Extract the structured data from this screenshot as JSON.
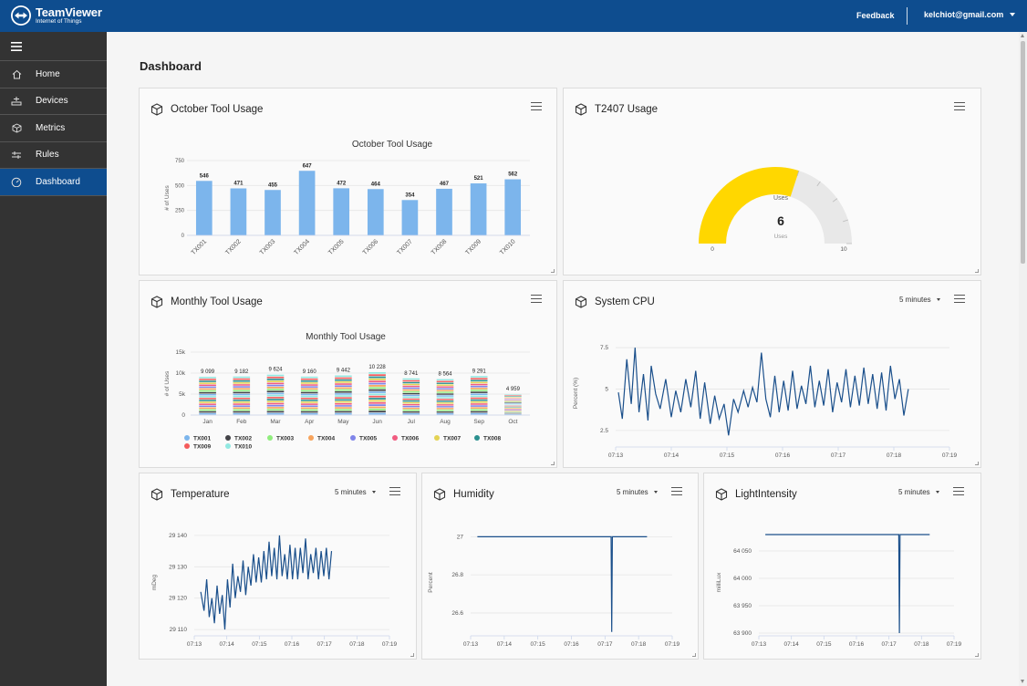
{
  "app": {
    "brand_name": "TeamViewer",
    "brand_sub": "Internet of Things",
    "feedback": "Feedback",
    "user_email": "kelchiot@gmail.com"
  },
  "sidebar": {
    "items": [
      {
        "label": "Home",
        "icon": "home-icon"
      },
      {
        "label": "Devices",
        "icon": "devices-icon"
      },
      {
        "label": "Metrics",
        "icon": "cube-icon"
      },
      {
        "label": "Rules",
        "icon": "rules-icon"
      },
      {
        "label": "Dashboard",
        "icon": "dashboard-icon",
        "active": true
      }
    ]
  },
  "page": {
    "title": "Dashboard"
  },
  "colors": {
    "accent": "#0e4d8f",
    "bar": "#7cb5ec",
    "gauge": "#ffd700",
    "line": "#1a4f8b"
  },
  "widgets": {
    "october": {
      "title": "October Tool Usage"
    },
    "t2407": {
      "title": "T2407 Usage"
    },
    "monthly": {
      "title": "Monthly Tool Usage"
    },
    "cpu": {
      "title": "System CPU",
      "range": "5 minutes"
    },
    "temperature": {
      "title": "Temperature",
      "range": "5 minutes"
    },
    "humidity": {
      "title": "Humidity",
      "range": "5 minutes"
    },
    "light": {
      "title": "LightIntensity",
      "range": "5 minutes"
    }
  },
  "chart_data": [
    {
      "id": "october",
      "type": "bar",
      "title": "October Tool Usage",
      "ylabel": "# of Uses",
      "ylim": [
        0,
        750
      ],
      "yticks": [
        "0",
        "250",
        "500",
        "750"
      ],
      "categories": [
        "TX001",
        "TX002",
        "TX003",
        "TX004",
        "TX005",
        "TX006",
        "TX007",
        "TX008",
        "TX009",
        "TX010"
      ],
      "values": [
        546,
        471,
        455,
        647,
        472,
        464,
        354,
        467,
        521,
        562
      ],
      "data_labels": [
        "546",
        "471",
        "455",
        "647",
        "472",
        "464",
        "354",
        "467",
        "521",
        "562"
      ],
      "color": "#7cb5ec"
    },
    {
      "id": "t2407",
      "type": "gauge",
      "value": 6,
      "value_label": "6",
      "min": 0,
      "max": 10,
      "min_label": "0",
      "max_label": "10",
      "top_label": "Uses",
      "unit_label": "Uses",
      "color": "#ffd700"
    },
    {
      "id": "monthly",
      "type": "bar",
      "stacked": true,
      "title": "Monthly Tool Usage",
      "ylabel": "# of Uses",
      "ylim": [
        0,
        15000
      ],
      "yticks": [
        "0",
        "5k",
        "10k",
        "15k"
      ],
      "categories": [
        "Jan",
        "Feb",
        "Mar",
        "Apr",
        "May",
        "Jun",
        "Jul",
        "Aug",
        "Sep",
        "Oct"
      ],
      "totals": [
        9099,
        9182,
        9624,
        9160,
        9442,
        10228,
        8741,
        8564,
        9291,
        4959
      ],
      "total_labels": [
        "9 099",
        "9 182",
        "9 624",
        "9 160",
        "9 442",
        "10 228",
        "8 741",
        "8 564",
        "9 291",
        "4 959"
      ],
      "series": [
        {
          "name": "TX001",
          "color": "#7cb5ec"
        },
        {
          "name": "TX002",
          "color": "#434348"
        },
        {
          "name": "TX003",
          "color": "#90ed7d"
        },
        {
          "name": "TX004",
          "color": "#f7a35c"
        },
        {
          "name": "TX005",
          "color": "#8085e9"
        },
        {
          "name": "TX006",
          "color": "#f15c80"
        },
        {
          "name": "TX007",
          "color": "#e4d354"
        },
        {
          "name": "TX008",
          "color": "#2b908f"
        },
        {
          "name": "TX009",
          "color": "#f45b5b"
        },
        {
          "name": "TX010",
          "color": "#91e8e1"
        }
      ]
    },
    {
      "id": "cpu",
      "type": "line",
      "ylabel": "Percent (%)",
      "ylim": [
        1.5,
        8
      ],
      "yticks": [
        {
          "v": 2.5,
          "t": "2.5"
        },
        {
          "v": 5,
          "t": "5"
        },
        {
          "v": 7.5,
          "t": "7.5"
        }
      ],
      "xticks": [
        "07:13",
        "07:14",
        "07:15",
        "07:16",
        "07:17",
        "07:18",
        "07:19"
      ],
      "xrange": [
        0,
        6
      ],
      "color": "#1a4f8b",
      "points": [
        [
          0.05,
          4.8
        ],
        [
          0.12,
          3.2
        ],
        [
          0.2,
          6.8
        ],
        [
          0.28,
          4.1
        ],
        [
          0.35,
          7.5
        ],
        [
          0.42,
          3.6
        ],
        [
          0.5,
          5.9
        ],
        [
          0.58,
          3.1
        ],
        [
          0.64,
          6.4
        ],
        [
          0.72,
          4.7
        ],
        [
          0.8,
          3.8
        ],
        [
          0.9,
          5.6
        ],
        [
          1.0,
          3.3
        ],
        [
          1.08,
          4.9
        ],
        [
          1.17,
          3.6
        ],
        [
          1.26,
          5.6
        ],
        [
          1.35,
          3.9
        ],
        [
          1.44,
          6.1
        ],
        [
          1.52,
          3.2
        ],
        [
          1.6,
          5.4
        ],
        [
          1.7,
          2.9
        ],
        [
          1.78,
          4.6
        ],
        [
          1.86,
          3.2
        ],
        [
          1.95,
          4.1
        ],
        [
          2.03,
          2.2
        ],
        [
          2.12,
          4.4
        ],
        [
          2.2,
          3.6
        ],
        [
          2.3,
          4.9
        ],
        [
          2.38,
          3.9
        ],
        [
          2.46,
          5.1
        ],
        [
          2.54,
          4.2
        ],
        [
          2.62,
          7.2
        ],
        [
          2.7,
          4.4
        ],
        [
          2.78,
          3.3
        ],
        [
          2.86,
          5.8
        ],
        [
          2.94,
          3.6
        ],
        [
          3.02,
          5.5
        ],
        [
          3.1,
          3.7
        ],
        [
          3.18,
          6.1
        ],
        [
          3.26,
          3.8
        ],
        [
          3.34,
          5.2
        ],
        [
          3.42,
          4.1
        ],
        [
          3.5,
          6.4
        ],
        [
          3.58,
          3.9
        ],
        [
          3.66,
          5.5
        ],
        [
          3.74,
          4.0
        ],
        [
          3.82,
          6.2
        ],
        [
          3.9,
          3.6
        ],
        [
          3.98,
          5.4
        ],
        [
          4.06,
          4.2
        ],
        [
          4.14,
          6.2
        ],
        [
          4.22,
          3.9
        ],
        [
          4.3,
          5.8
        ],
        [
          4.38,
          4.0
        ],
        [
          4.46,
          6.3
        ],
        [
          4.54,
          4.1
        ],
        [
          4.62,
          5.9
        ],
        [
          4.7,
          3.8
        ],
        [
          4.78,
          6.0
        ],
        [
          4.86,
          3.7
        ],
        [
          4.94,
          6.4
        ],
        [
          5.02,
          4.4
        ],
        [
          5.1,
          5.6
        ],
        [
          5.18,
          3.4
        ],
        [
          5.26,
          5.0
        ]
      ]
    },
    {
      "id": "temperature",
      "type": "line",
      "ylabel": "mDeg",
      "ylim": [
        29108,
        29142
      ],
      "yticks": [
        {
          "v": 29110,
          "t": "29 110"
        },
        {
          "v": 29120,
          "t": "29 120"
        },
        {
          "v": 29130,
          "t": "29 130"
        },
        {
          "v": 29140,
          "t": "29 140"
        }
      ],
      "xticks": [
        "07:13",
        "07:14",
        "07:15",
        "07:16",
        "07:17",
        "07:18",
        "07:19"
      ],
      "xrange": [
        0,
        6
      ],
      "color": "#1a4f8b",
      "points": [
        [
          0.2,
          29122
        ],
        [
          0.3,
          29116
        ],
        [
          0.38,
          29126
        ],
        [
          0.46,
          29114
        ],
        [
          0.54,
          29120
        ],
        [
          0.62,
          29112
        ],
        [
          0.7,
          29124
        ],
        [
          0.78,
          29115
        ],
        [
          0.86,
          29121
        ],
        [
          0.94,
          29110
        ],
        [
          1.02,
          29126
        ],
        [
          1.1,
          29117
        ],
        [
          1.18,
          29131
        ],
        [
          1.26,
          29120
        ],
        [
          1.34,
          29127
        ],
        [
          1.42,
          29122
        ],
        [
          1.5,
          29132
        ],
        [
          1.58,
          29121
        ],
        [
          1.66,
          29130
        ],
        [
          1.74,
          29124
        ],
        [
          1.82,
          29134
        ],
        [
          1.9,
          29125
        ],
        [
          1.98,
          29133
        ],
        [
          2.06,
          29125
        ],
        [
          2.14,
          29135
        ],
        [
          2.22,
          29126
        ],
        [
          2.3,
          29138
        ],
        [
          2.38,
          29127
        ],
        [
          2.46,
          29136
        ],
        [
          2.54,
          29126
        ],
        [
          2.62,
          29140
        ],
        [
          2.7,
          29127
        ],
        [
          2.78,
          29134
        ],
        [
          2.86,
          29126
        ],
        [
          2.94,
          29137
        ],
        [
          3.02,
          29126
        ],
        [
          3.1,
          29136
        ],
        [
          3.18,
          29126
        ],
        [
          3.26,
          29136
        ],
        [
          3.34,
          29128
        ],
        [
          3.42,
          29139
        ],
        [
          3.5,
          29126
        ],
        [
          3.58,
          29134
        ],
        [
          3.66,
          29128
        ],
        [
          3.74,
          29136
        ],
        [
          3.82,
          29126
        ],
        [
          3.9,
          29135
        ],
        [
          3.98,
          29127
        ],
        [
          4.06,
          29136
        ],
        [
          4.14,
          29126
        ],
        [
          4.22,
          29135
        ]
      ]
    },
    {
      "id": "humidity",
      "type": "line",
      "ylabel": "Percent",
      "ylim": [
        26.48,
        27.04
      ],
      "yticks": [
        {
          "v": 26.6,
          "t": "26.6"
        },
        {
          "v": 26.8,
          "t": "26.8"
        },
        {
          "v": 27,
          "t": "27"
        }
      ],
      "xticks": [
        "07:13",
        "07:14",
        "07:15",
        "07:16",
        "07:17",
        "07:18",
        "07:19"
      ],
      "xrange": [
        0,
        6
      ],
      "color": "#1a4f8b",
      "points": [
        [
          0.2,
          27
        ],
        [
          4.18,
          27
        ],
        [
          4.2,
          26.5
        ],
        [
          4.22,
          27
        ],
        [
          5.25,
          27
        ]
      ]
    },
    {
      "id": "light",
      "type": "line",
      "ylabel": "milliLux",
      "ylim": [
        63895,
        64090
      ],
      "yticks": [
        {
          "v": 63900,
          "t": "63 900"
        },
        {
          "v": 63950,
          "t": "63 950"
        },
        {
          "v": 64000,
          "t": "64 000"
        },
        {
          "v": 64050,
          "t": "64 050"
        }
      ],
      "xticks": [
        "07:13",
        "07:14",
        "07:15",
        "07:16",
        "07:17",
        "07:18",
        "07:19"
      ],
      "xrange": [
        0,
        6
      ],
      "color": "#1a4f8b",
      "points": [
        [
          0.2,
          64080
        ],
        [
          4.3,
          64080
        ],
        [
          4.32,
          63900
        ],
        [
          4.34,
          64080
        ],
        [
          5.25,
          64080
        ]
      ]
    }
  ]
}
